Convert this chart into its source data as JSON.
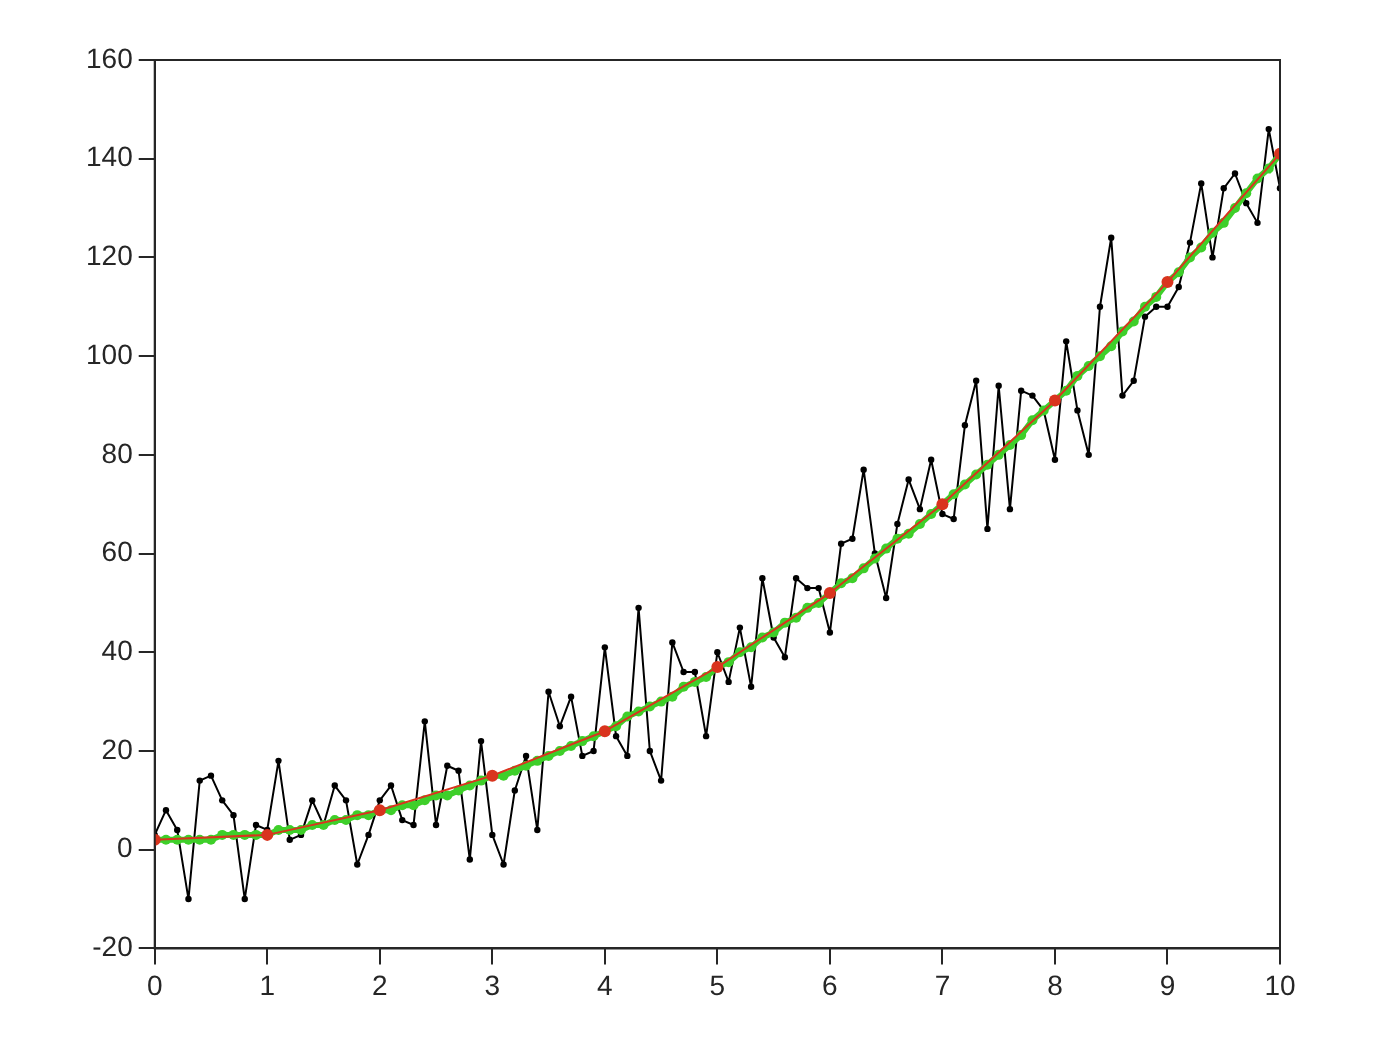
{
  "chart_data": {
    "type": "line",
    "xlim": [
      0,
      10
    ],
    "xticks": [
      0,
      1,
      2,
      3,
      4,
      5,
      6,
      7,
      8,
      9,
      10
    ],
    "ylim": [
      -20,
      160
    ],
    "yticks": [
      -20,
      0,
      20,
      40,
      60,
      80,
      100,
      120,
      140,
      160
    ],
    "grid": false,
    "legend": false,
    "marker": "circle",
    "line_style": "solid",
    "x": [
      0,
      0.1,
      0.2,
      0.3,
      0.4,
      0.5,
      0.6,
      0.7,
      0.8,
      0.9,
      1,
      1.1,
      1.2,
      1.3,
      1.4,
      1.5,
      1.6,
      1.7,
      1.8,
      1.9,
      2,
      2.1,
      2.2,
      2.3,
      2.4,
      2.5,
      2.6,
      2.7,
      2.8,
      2.9,
      3,
      3.1,
      3.2,
      3.3,
      3.4,
      3.5,
      3.6,
      3.7,
      3.8,
      3.9,
      4,
      4.1,
      4.2,
      4.3,
      4.4,
      4.5,
      4.6,
      4.7,
      4.8,
      4.9,
      5,
      5.1,
      5.2,
      5.3,
      5.4,
      5.5,
      5.6,
      5.7,
      5.8,
      5.9,
      6,
      6.1,
      6.2,
      6.3,
      6.4,
      6.5,
      6.6,
      6.7,
      6.8,
      6.9,
      7,
      7.1,
      7.2,
      7.3,
      7.4,
      7.5,
      7.6,
      7.7,
      7.8,
      7.9,
      8,
      8.1,
      8.2,
      8.3,
      8.4,
      8.5,
      8.6,
      8.7,
      8.8,
      8.9,
      9,
      9.1,
      9.2,
      9.3,
      9.4,
      9.5,
      9.6,
      9.7,
      9.8,
      9.9,
      10
    ],
    "series": [
      {
        "color": "#000000",
        "values": [
          3,
          8,
          4,
          -10,
          14,
          15,
          10,
          7,
          -10,
          5,
          4,
          18,
          2,
          3,
          10,
          5,
          13,
          10,
          -3,
          3,
          10,
          13,
          6,
          5,
          26,
          5,
          17,
          16,
          -2,
          22,
          3,
          -3,
          12,
          19,
          4,
          32,
          25,
          31,
          19,
          20,
          41,
          23,
          19,
          49,
          20,
          14,
          42,
          36,
          36,
          23,
          40,
          34,
          45,
          33,
          55,
          43,
          39,
          55,
          53,
          53,
          44,
          62,
          63,
          77,
          60,
          51,
          66,
          75,
          69,
          79,
          68,
          67,
          86,
          95,
          65,
          94,
          69,
          93,
          92,
          89,
          79,
          103,
          89,
          80,
          110,
          124,
          92,
          95,
          108,
          110,
          110,
          114,
          123,
          135,
          120,
          134,
          137,
          131,
          127,
          146,
          134
        ]
      },
      {
        "color": "#3ecf2a",
        "values": [
          2,
          2,
          2,
          2,
          2,
          2,
          3,
          3,
          3,
          3,
          3,
          4,
          4,
          4,
          5,
          5,
          6,
          6,
          7,
          7,
          8,
          8,
          9,
          9,
          10,
          11,
          11,
          12,
          13,
          14,
          15,
          15,
          16,
          17,
          18,
          19,
          20,
          21,
          22,
          23,
          24,
          25,
          27,
          28,
          29,
          30,
          31,
          33,
          34,
          35,
          37,
          38,
          40,
          41,
          43,
          44,
          46,
          47,
          49,
          50,
          52,
          54,
          55,
          57,
          59,
          61,
          63,
          64,
          66,
          68,
          70,
          72,
          74,
          76,
          78,
          80,
          82,
          84,
          87,
          89,
          91,
          93,
          96,
          98,
          100,
          102,
          105,
          107,
          110,
          112,
          115,
          117,
          120,
          122,
          125,
          127,
          130,
          133,
          136,
          138,
          141
        ]
      },
      {
        "color": "#d9341e",
        "x": [
          0,
          1,
          2,
          3,
          4,
          5,
          6,
          7,
          8,
          9,
          10
        ],
        "values": [
          2,
          3,
          8,
          15,
          24,
          37,
          52,
          70,
          91,
          115,
          141
        ]
      }
    ]
  }
}
